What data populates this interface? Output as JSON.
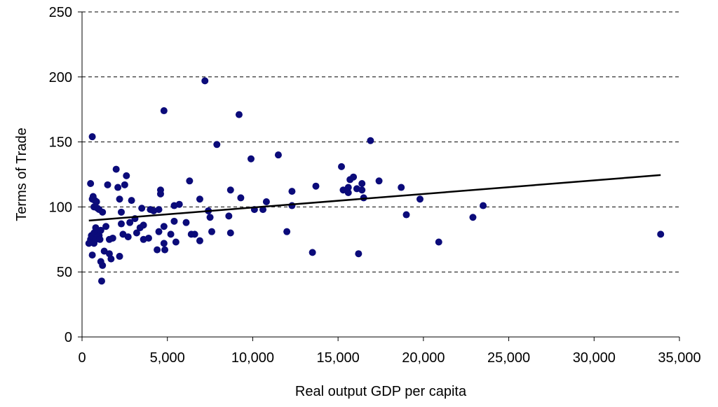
{
  "chart_data": {
    "type": "scatter",
    "title": "",
    "xlabel": "Real output GDP per capita",
    "ylabel": "Terms of Trade",
    "xlim": [
      0,
      35000
    ],
    "ylim": [
      0,
      250
    ],
    "x_ticks": [
      0,
      5000,
      10000,
      15000,
      20000,
      25000,
      30000,
      35000
    ],
    "x_tick_labels": [
      "0",
      "5,000",
      "10,000",
      "15,000",
      "20,000",
      "25,000",
      "30,000",
      "35,000"
    ],
    "y_ticks": [
      0,
      50,
      100,
      150,
      200,
      250
    ],
    "y_tick_labels": [
      "0",
      "50",
      "100",
      "150",
      "200",
      "250"
    ],
    "grid": "horizontal-dashed",
    "legend": "none",
    "point_color": "#0b0b7a",
    "trendline": {
      "color": "#000000",
      "x": [
        400,
        33900
      ],
      "y": [
        89.5,
        124.5
      ]
    },
    "points": [
      {
        "x": 400,
        "y": 72
      },
      {
        "x": 500,
        "y": 118
      },
      {
        "x": 500,
        "y": 75
      },
      {
        "x": 550,
        "y": 78
      },
      {
        "x": 600,
        "y": 154
      },
      {
        "x": 600,
        "y": 106
      },
      {
        "x": 600,
        "y": 63
      },
      {
        "x": 650,
        "y": 108
      },
      {
        "x": 700,
        "y": 100
      },
      {
        "x": 700,
        "y": 72
      },
      {
        "x": 700,
        "y": 80
      },
      {
        "x": 750,
        "y": 105
      },
      {
        "x": 800,
        "y": 84
      },
      {
        "x": 800,
        "y": 75
      },
      {
        "x": 850,
        "y": 104
      },
      {
        "x": 900,
        "y": 99
      },
      {
        "x": 900,
        "y": 80
      },
      {
        "x": 1000,
        "y": 78
      },
      {
        "x": 1000,
        "y": 98
      },
      {
        "x": 1050,
        "y": 75
      },
      {
        "x": 1100,
        "y": 82
      },
      {
        "x": 1100,
        "y": 58
      },
      {
        "x": 1150,
        "y": 43
      },
      {
        "x": 1200,
        "y": 96
      },
      {
        "x": 1200,
        "y": 55
      },
      {
        "x": 1300,
        "y": 66
      },
      {
        "x": 1400,
        "y": 85
      },
      {
        "x": 1500,
        "y": 117
      },
      {
        "x": 1600,
        "y": 64
      },
      {
        "x": 1600,
        "y": 75
      },
      {
        "x": 1700,
        "y": 60
      },
      {
        "x": 1800,
        "y": 76
      },
      {
        "x": 2000,
        "y": 129
      },
      {
        "x": 2100,
        "y": 115
      },
      {
        "x": 2200,
        "y": 62
      },
      {
        "x": 2200,
        "y": 106
      },
      {
        "x": 2300,
        "y": 87
      },
      {
        "x": 2300,
        "y": 96
      },
      {
        "x": 2400,
        "y": 79
      },
      {
        "x": 2500,
        "y": 117
      },
      {
        "x": 2600,
        "y": 124
      },
      {
        "x": 2700,
        "y": 77
      },
      {
        "x": 2800,
        "y": 88
      },
      {
        "x": 2900,
        "y": 105
      },
      {
        "x": 3100,
        "y": 91
      },
      {
        "x": 3200,
        "y": 80
      },
      {
        "x": 3400,
        "y": 84
      },
      {
        "x": 3500,
        "y": 99
      },
      {
        "x": 3600,
        "y": 86
      },
      {
        "x": 3600,
        "y": 75
      },
      {
        "x": 3900,
        "y": 76
      },
      {
        "x": 4000,
        "y": 98
      },
      {
        "x": 4200,
        "y": 97
      },
      {
        "x": 4400,
        "y": 67
      },
      {
        "x": 4500,
        "y": 81
      },
      {
        "x": 4500,
        "y": 98
      },
      {
        "x": 4600,
        "y": 113
      },
      {
        "x": 4600,
        "y": 110
      },
      {
        "x": 4800,
        "y": 174
      },
      {
        "x": 4800,
        "y": 85
      },
      {
        "x": 4800,
        "y": 72
      },
      {
        "x": 4850,
        "y": 67
      },
      {
        "x": 5200,
        "y": 79
      },
      {
        "x": 5400,
        "y": 101
      },
      {
        "x": 5400,
        "y": 89
      },
      {
        "x": 5500,
        "y": 73
      },
      {
        "x": 5700,
        "y": 102
      },
      {
        "x": 6100,
        "y": 88
      },
      {
        "x": 6300,
        "y": 120
      },
      {
        "x": 6400,
        "y": 79
      },
      {
        "x": 6600,
        "y": 79
      },
      {
        "x": 6900,
        "y": 74
      },
      {
        "x": 6900,
        "y": 106
      },
      {
        "x": 7200,
        "y": 197
      },
      {
        "x": 7400,
        "y": 97
      },
      {
        "x": 7500,
        "y": 92
      },
      {
        "x": 7600,
        "y": 81
      },
      {
        "x": 7900,
        "y": 148
      },
      {
        "x": 8600,
        "y": 93
      },
      {
        "x": 8700,
        "y": 113
      },
      {
        "x": 8700,
        "y": 80
      },
      {
        "x": 9200,
        "y": 171
      },
      {
        "x": 9300,
        "y": 107
      },
      {
        "x": 9900,
        "y": 137
      },
      {
        "x": 10100,
        "y": 98
      },
      {
        "x": 10600,
        "y": 98
      },
      {
        "x": 10800,
        "y": 104
      },
      {
        "x": 11500,
        "y": 140
      },
      {
        "x": 12000,
        "y": 81
      },
      {
        "x": 12300,
        "y": 101
      },
      {
        "x": 12300,
        "y": 112
      },
      {
        "x": 13500,
        "y": 65
      },
      {
        "x": 13700,
        "y": 116
      },
      {
        "x": 15200,
        "y": 131
      },
      {
        "x": 15300,
        "y": 113
      },
      {
        "x": 15600,
        "y": 111
      },
      {
        "x": 15600,
        "y": 115
      },
      {
        "x": 15700,
        "y": 121
      },
      {
        "x": 15900,
        "y": 123
      },
      {
        "x": 16100,
        "y": 114
      },
      {
        "x": 16200,
        "y": 64
      },
      {
        "x": 16400,
        "y": 113
      },
      {
        "x": 16400,
        "y": 118
      },
      {
        "x": 16500,
        "y": 107
      },
      {
        "x": 16900,
        "y": 151
      },
      {
        "x": 17400,
        "y": 120
      },
      {
        "x": 18700,
        "y": 115
      },
      {
        "x": 19000,
        "y": 94
      },
      {
        "x": 19800,
        "y": 106
      },
      {
        "x": 20900,
        "y": 73
      },
      {
        "x": 22900,
        "y": 92
      },
      {
        "x": 23500,
        "y": 101
      },
      {
        "x": 33900,
        "y": 79
      }
    ]
  }
}
